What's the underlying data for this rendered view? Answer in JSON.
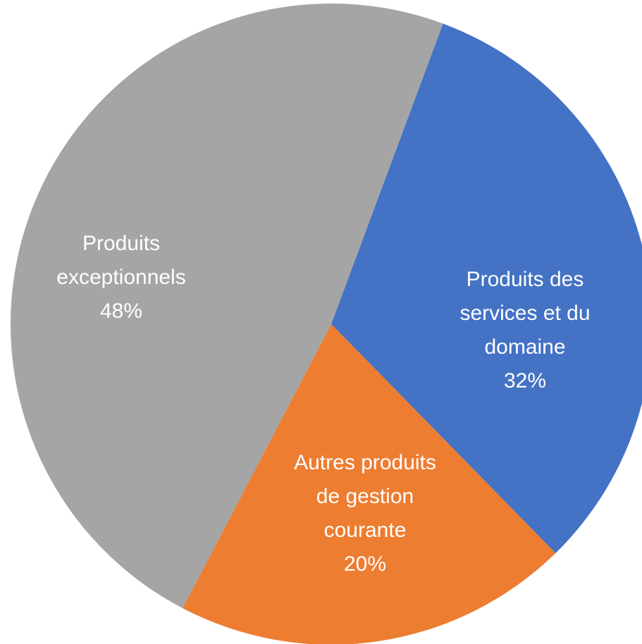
{
  "chart_data": {
    "type": "pie",
    "categories": [
      "Produits des services et du domaine",
      "Autres produits de gestion courante",
      "Produits exceptionnels"
    ],
    "values": [
      32,
      20,
      48
    ],
    "value_labels": [
      "32%",
      "20%",
      "48%"
    ],
    "colors": [
      "#4472c4",
      "#ed7d31",
      "#a5a5a5"
    ]
  }
}
